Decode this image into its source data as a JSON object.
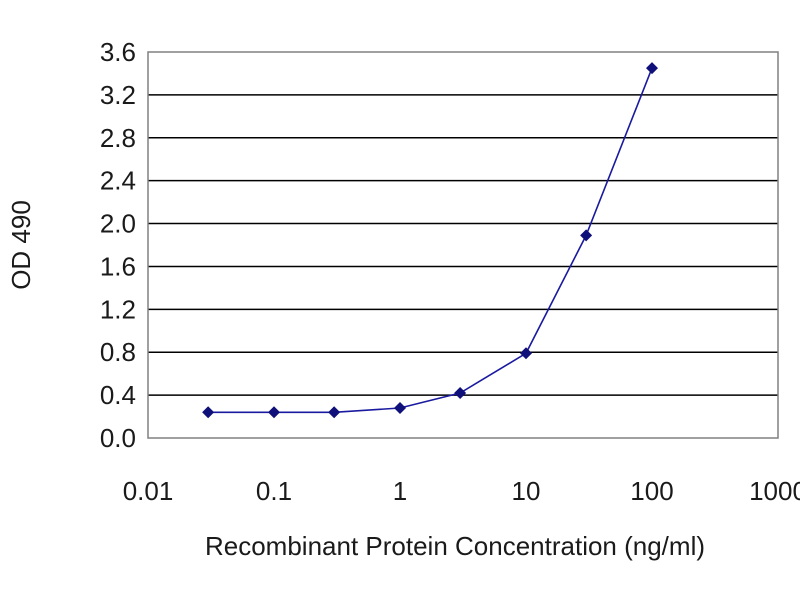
{
  "chart_data": {
    "type": "line",
    "xlabel": "Recombinant Protein Concentration (ng/ml)",
    "ylabel": "OD 490",
    "x_scale": "log",
    "xlim": [
      0.01,
      1000
    ],
    "ylim": [
      0,
      3.6
    ],
    "x_ticks": [
      "0.01",
      "0.1",
      "1",
      "10",
      "100",
      "1000"
    ],
    "y_ticks": [
      "0.0",
      "0.4",
      "0.8",
      "1.2",
      "1.6",
      "2.0",
      "2.4",
      "2.8",
      "3.2",
      "3.6"
    ],
    "grid": "horizontal",
    "colors": {
      "series": "#1a1aa0",
      "grid": "#000000",
      "frame": "#808080"
    },
    "series": [
      {
        "x": [
          0.03,
          0.1,
          0.3,
          1,
          3,
          10,
          30,
          100
        ],
        "y": [
          0.24,
          0.24,
          0.24,
          0.28,
          0.42,
          0.79,
          1.89,
          3.45
        ]
      }
    ]
  }
}
